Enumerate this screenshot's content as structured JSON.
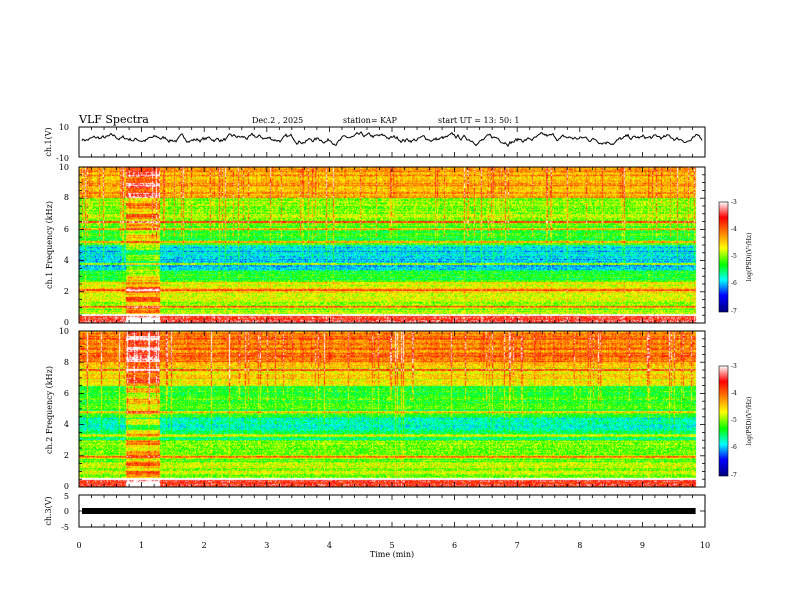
{
  "header": {
    "title": "VLF Spectra",
    "date": "Dec.2 , 2025",
    "station": "station= KAP",
    "start_ut": "start UT = 13: 50: 1"
  },
  "chart_data": [
    {
      "type": "line",
      "name": "ch1-waveform",
      "ylabel": "ch.1(V)",
      "ylim": [
        -10,
        10
      ],
      "ytick_labels": [
        "10",
        "-10"
      ],
      "xlim": [
        0,
        10
      ],
      "approx_mean_v": 2,
      "approx_range_v": [
        -4,
        8
      ]
    },
    {
      "type": "heatmap",
      "name": "ch1-spectrogram",
      "ylabel": "ch.1 Frequency (kHz)",
      "ylim": [
        0,
        10
      ],
      "ytick_labels": [
        "0",
        "2",
        "4",
        "6",
        "8",
        "10"
      ],
      "xlim": [
        0,
        10
      ],
      "data_end_min": 9.85,
      "burst_interval_min": [
        0.75,
        1.3
      ],
      "bands": [
        {
          "f0": 0,
          "f1": 0.6,
          "level": -3.6
        },
        {
          "f0": 0.6,
          "f1": 1.5,
          "level": -4.9
        },
        {
          "f0": 1.5,
          "f1": 2.6,
          "level": -4.6
        },
        {
          "f0": 2.6,
          "f1": 3.4,
          "level": -5.3
        },
        {
          "f0": 3.4,
          "f1": 5.0,
          "level": -5.9
        },
        {
          "f0": 5.0,
          "f1": 6.2,
          "level": -5.2
        },
        {
          "f0": 6.2,
          "f1": 8.0,
          "level": -4.9
        },
        {
          "f0": 8.0,
          "f1": 10.0,
          "level": -4.3
        }
      ],
      "lines_khz": [
        0.5,
        1.0,
        2.1,
        3.8,
        5.2,
        6.0,
        6.5
      ],
      "colorbar": {
        "label": "log(PSD)(V²/Hz)",
        "range": [
          -7,
          -3
        ],
        "tick_labels": [
          "-3",
          "-4",
          "-5",
          "-6",
          "-7"
        ]
      }
    },
    {
      "type": "heatmap",
      "name": "ch2-spectrogram",
      "ylabel": "ch.2 Frequency (kHz)",
      "ylim": [
        0,
        10
      ],
      "ytick_labels": [
        "0",
        "2",
        "4",
        "6",
        "8",
        "10"
      ],
      "xlim": [
        0,
        10
      ],
      "data_end_min": 9.85,
      "burst_interval_min": [
        0.75,
        1.3
      ],
      "bands": [
        {
          "f0": 0,
          "f1": 0.6,
          "level": -3.6
        },
        {
          "f0": 0.6,
          "f1": 1.6,
          "level": -4.8
        },
        {
          "f0": 1.6,
          "f1": 3.0,
          "level": -5.0
        },
        {
          "f0": 3.0,
          "f1": 4.4,
          "level": -5.6
        },
        {
          "f0": 4.4,
          "f1": 6.5,
          "level": -5.3
        },
        {
          "f0": 6.5,
          "f1": 8.0,
          "level": -4.6
        },
        {
          "f0": 8.0,
          "f1": 10.0,
          "level": -4.1
        }
      ],
      "lines_khz": [
        0.5,
        1.9,
        3.3,
        4.8,
        7.5
      ],
      "colorbar": {
        "label": "log(PSD)(V²/Hz)",
        "range": [
          -7,
          -3
        ],
        "tick_labels": [
          "-3",
          "-4",
          "-5",
          "-6",
          "-7"
        ]
      }
    },
    {
      "type": "line",
      "name": "ch3-waveform",
      "ylabel": "ch.3(V)",
      "ylim": [
        -5,
        5
      ],
      "ytick_labels": [
        "5",
        "0",
        "-5"
      ],
      "xlim": [
        0,
        10
      ],
      "value_v": 0,
      "xlabel": "Time (min)",
      "xtick_labels": [
        "0",
        "1",
        "2",
        "3",
        "4",
        "5",
        "6",
        "7",
        "8",
        "9",
        "10"
      ]
    }
  ]
}
